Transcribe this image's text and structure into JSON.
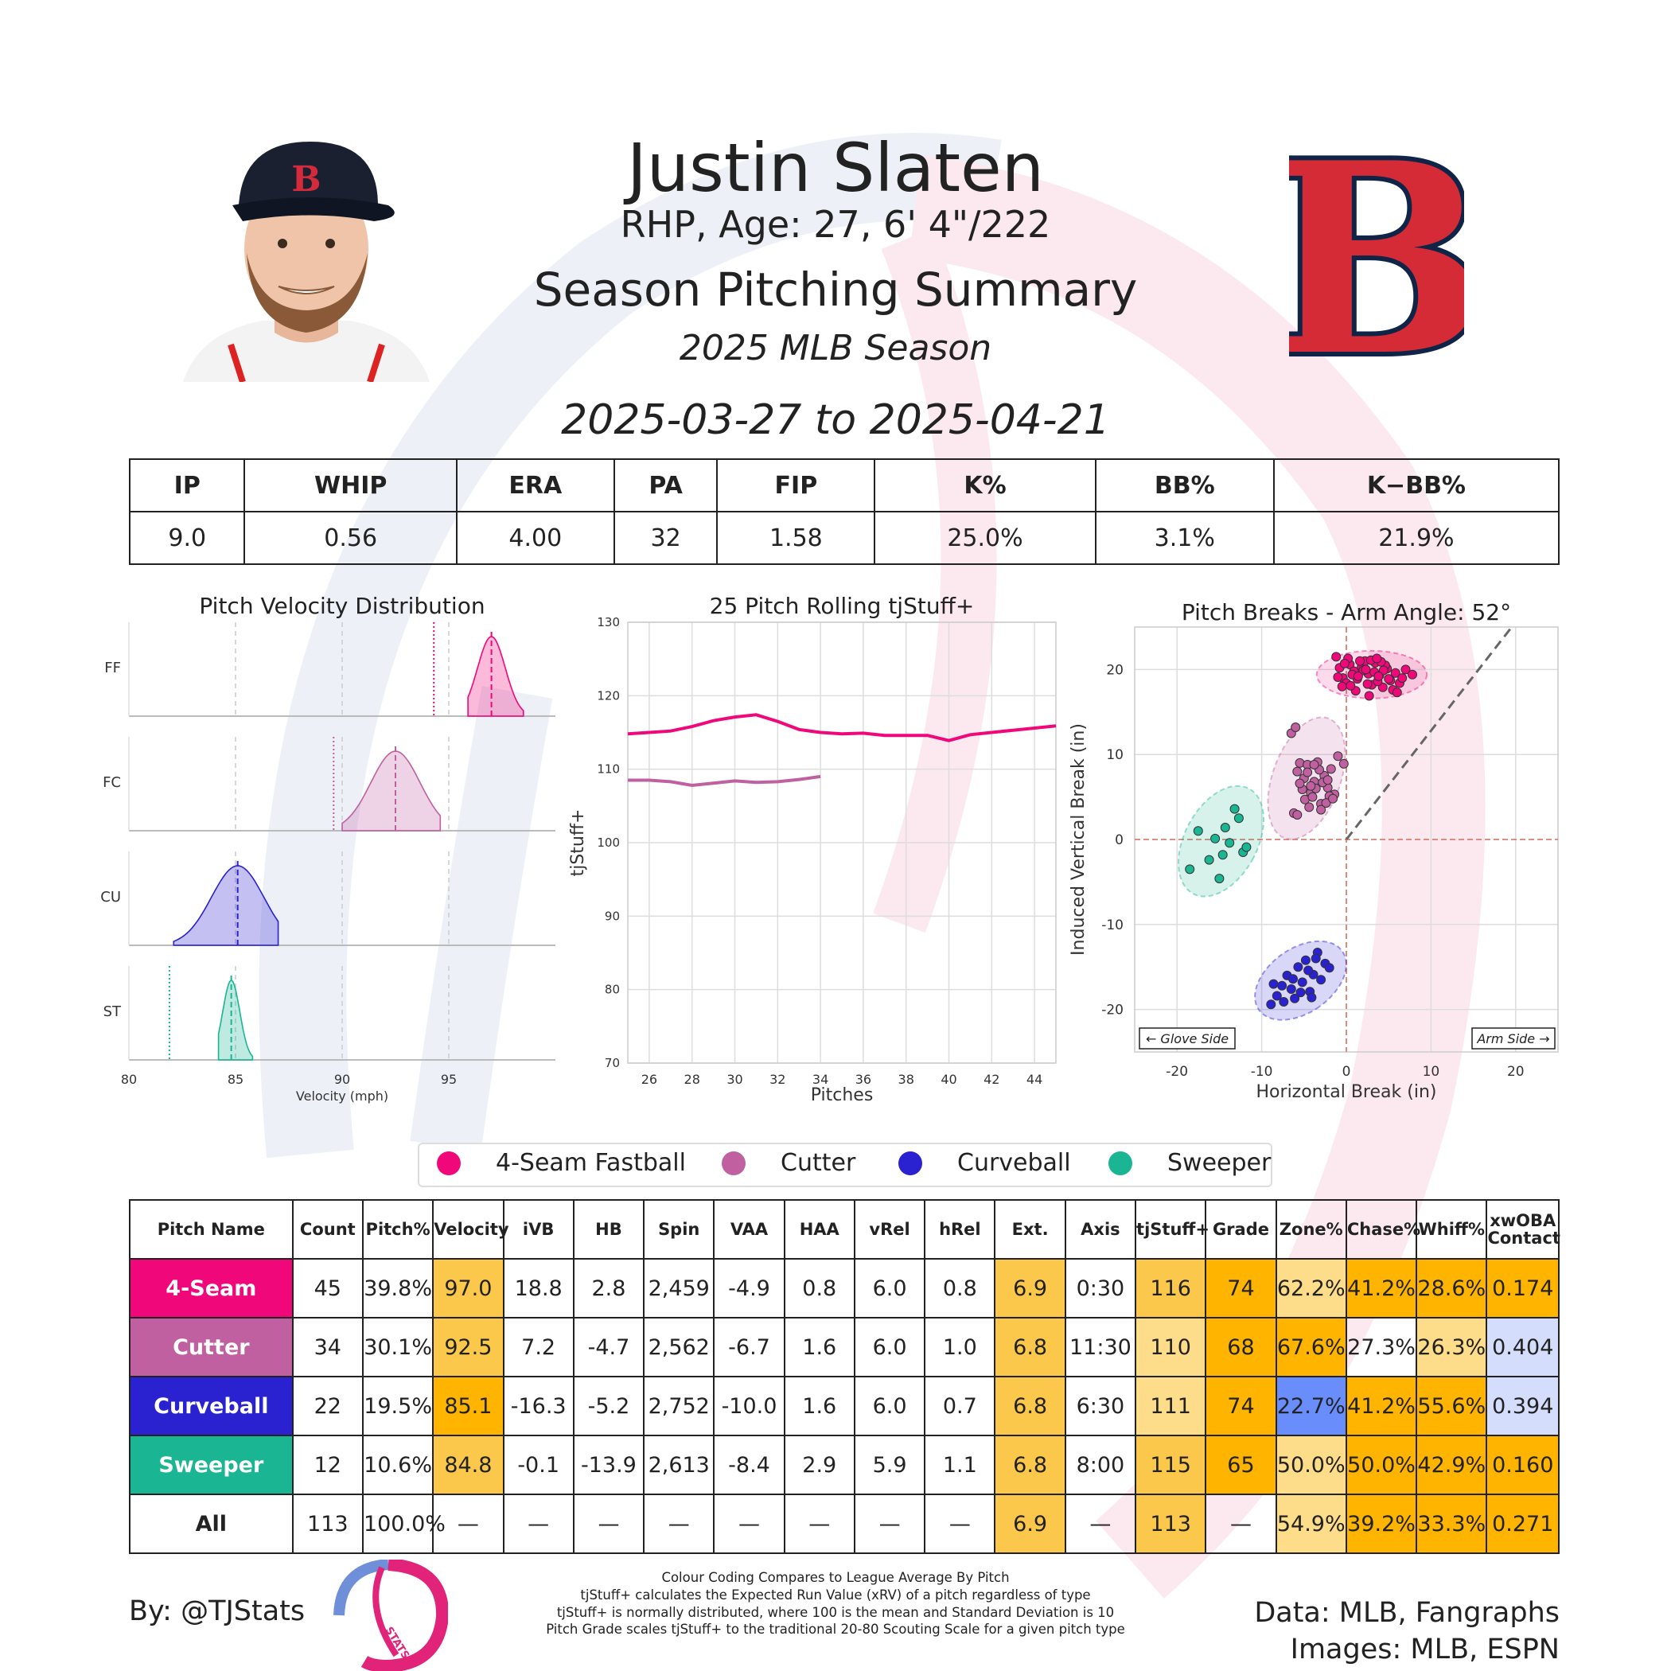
{
  "header": {
    "name": "Justin Slaten",
    "bio": "RHP, Age: 27, 6' 4\"/222",
    "heading": "Season Pitching Summary",
    "season": "2025 MLB Season",
    "date_range": "2025-03-27 to 2025-04-21",
    "team_logo_letter": "B"
  },
  "colors": {
    "four_seam": "#f0087a",
    "cutter": "#c060a0",
    "curveball": "#2a22d0",
    "sweeper": "#1ab592",
    "cell_orange": "#ffb400",
    "cell_orange_mid": "#fcc84c",
    "cell_orange_light": "#fddc8a",
    "cell_blue": "#6a8dfc",
    "cell_blue_light": "#d4ddfb"
  },
  "summary_stats": {
    "headers": [
      "IP",
      "WHIP",
      "ERA",
      "PA",
      "FIP",
      "K%",
      "BB%",
      "K−BB%"
    ],
    "values": [
      "9.0",
      "0.56",
      "4.00",
      "32",
      "1.58",
      "25.0%",
      "3.1%",
      "21.9%"
    ]
  },
  "legend": [
    "4-Seam Fastball",
    "Cutter",
    "Curveball",
    "Sweeper"
  ],
  "pitch_table": {
    "headers": [
      "Pitch Name",
      "Count",
      "Pitch%",
      "Velocity",
      "iVB",
      "HB",
      "Spin",
      "VAA",
      "HAA",
      "vRel",
      "hRel",
      "Ext.",
      "Axis",
      "tjStuff+",
      "Grade",
      "Zone%",
      "Chase%",
      "Whiff%",
      "xwOBA Contact"
    ],
    "rows": [
      [
        "4-Seam",
        "45",
        "39.8%",
        "97.0",
        "18.8",
        "2.8",
        "2,459",
        "-4.9",
        "0.8",
        "6.0",
        "0.8",
        "6.9",
        "0:30",
        "116",
        "74",
        "62.2%",
        "41.2%",
        "28.6%",
        "0.174"
      ],
      [
        "Cutter",
        "34",
        "30.1%",
        "92.5",
        "7.2",
        "-4.7",
        "2,562",
        "-6.7",
        "1.6",
        "6.0",
        "1.0",
        "6.8",
        "11:30",
        "110",
        "68",
        "67.6%",
        "27.3%",
        "26.3%",
        "0.404"
      ],
      [
        "Curveball",
        "22",
        "19.5%",
        "85.1",
        "-16.3",
        "-5.2",
        "2,752",
        "-10.0",
        "1.6",
        "6.0",
        "0.7",
        "6.8",
        "6:30",
        "111",
        "74",
        "22.7%",
        "41.2%",
        "55.6%",
        "0.394"
      ],
      [
        "Sweeper",
        "12",
        "10.6%",
        "84.8",
        "-0.1",
        "-13.9",
        "2,613",
        "-8.4",
        "2.9",
        "5.9",
        "1.1",
        "6.8",
        "8:00",
        "115",
        "65",
        "50.0%",
        "50.0%",
        "42.9%",
        "0.160"
      ],
      [
        "All",
        "113",
        "100.0%",
        "—",
        "—",
        "—",
        "—",
        "—",
        "—",
        "—",
        "—",
        "6.9",
        "—",
        "113",
        "—",
        "54.9%",
        "39.2%",
        "33.3%",
        "0.271"
      ]
    ]
  },
  "footer": {
    "byline": "By: @TJStats",
    "logo_text": "STATS",
    "notes": [
      "Colour Coding Compares to League Average By Pitch",
      "tjStuff+ calculates the Expected Run Value (xRV) of a pitch regardless of type",
      "tjStuff+ is normally distributed, where 100 is the mean and Standard Deviation is 10",
      "Pitch Grade scales tjStuff+ to the traditional 20-80 Scouting Scale for a given pitch type"
    ],
    "data_credit": "Data: MLB, Fangraphs",
    "image_credit": "Images: MLB, ESPN"
  },
  "chart_data": [
    {
      "type": "area",
      "title": "Pitch Velocity Distribution",
      "xlabel": "Velocity (mph)",
      "xlim": [
        80,
        100
      ],
      "xticks": [
        "80",
        "85",
        "90",
        "95"
      ],
      "series": [
        {
          "name": "FF",
          "min": 95.9,
          "max": 98.5,
          "mean": 97.0,
          "league_avg": 94.3
        },
        {
          "name": "FC",
          "min": 90.0,
          "max": 94.6,
          "mean": 92.5,
          "league_avg": 89.6
        },
        {
          "name": "CU",
          "min": 82.1,
          "max": 87.0,
          "mean": 85.1
        },
        {
          "name": "ST",
          "min": 84.2,
          "max": 85.8,
          "mean": 84.8,
          "league_avg": 81.9
        }
      ]
    },
    {
      "type": "line",
      "title": "25 Pitch Rolling tjStuff+",
      "xlabel": "Pitches",
      "ylabel": "tjStuff+",
      "xlim": [
        25,
        45
      ],
      "ylim": [
        70,
        130
      ],
      "xticks": [
        "26",
        "28",
        "30",
        "32",
        "34",
        "36",
        "38",
        "40",
        "42",
        "44"
      ],
      "yticks": [
        "70",
        "80",
        "90",
        "100",
        "110",
        "120",
        "130"
      ],
      "series": [
        {
          "name": "4-Seam Fastball",
          "x": [
            25,
            26,
            27,
            28,
            29,
            30,
            31,
            32,
            33,
            34,
            35,
            36,
            37,
            38,
            39,
            40,
            41,
            42,
            43,
            44,
            45
          ],
          "values": [
            114.8,
            115.0,
            115.2,
            115.8,
            116.6,
            117.1,
            117.4,
            116.5,
            115.4,
            115.0,
            114.8,
            114.9,
            114.6,
            114.6,
            114.6,
            113.9,
            114.7,
            115.0,
            115.3,
            115.6,
            115.9
          ]
        },
        {
          "name": "Cutter",
          "x": [
            25,
            26,
            27,
            28,
            29,
            30,
            31,
            32,
            33,
            34
          ],
          "values": [
            108.5,
            108.5,
            108.3,
            107.8,
            108.1,
            108.4,
            108.2,
            108.3,
            108.6,
            109.0
          ]
        }
      ]
    },
    {
      "type": "scatter",
      "title": "Pitch Breaks - Arm Angle: 52°",
      "xlabel": "Horizontal Break (in)",
      "ylabel": "Induced Vertical Break (in)",
      "xlim": [
        -25,
        25
      ],
      "ylim": [
        -25,
        25
      ],
      "xticks": [
        "-20",
        "-10",
        "0",
        "10",
        "20"
      ],
      "yticks": [
        "-20",
        "-10",
        "0",
        "10",
        "20"
      ],
      "arm_angle_deg": 52,
      "annotations": [
        "← Glove Side",
        "Arm Side →"
      ],
      "series": [
        {
          "name": "4-Seam Fastball",
          "x": [
            -1.2,
            -0.8,
            -0.4,
            0,
            0.4,
            0.9,
            1.3,
            1.8,
            2.2,
            2.6,
            3.0,
            3.4,
            3.9,
            4.3,
            4.8,
            5.2,
            5.8,
            6.3,
            7.0,
            7.8,
            -1.0,
            0.2,
            1.1,
            2.0,
            2.9,
            3.7,
            4.6,
            5.5,
            6.6,
            -0.5,
            0.7,
            1.6,
            2.5,
            3.3,
            4.1,
            5.0,
            6.0,
            -0.2,
            1.4,
            2.7,
            3.6,
            4.4,
            0.5,
            2.3,
            3.8
          ],
          "y": [
            21.5,
            20.2,
            19.0,
            18.4,
            20.6,
            19.8,
            18.9,
            20.3,
            21.0,
            19.5,
            18.2,
            20.8,
            19.3,
            17.9,
            20.1,
            18.7,
            19.6,
            18.4,
            20.0,
            19.4,
            19.1,
            21.3,
            17.5,
            19.9,
            21.1,
            18.6,
            20.5,
            17.6,
            19.0,
            18.0,
            19.4,
            21.0,
            18.3,
            19.7,
            20.9,
            18.9,
            17.3,
            20.7,
            19.2,
            16.9,
            21.3,
            19.9,
            18.1,
            20.0,
            19.2
          ]
        },
        {
          "name": "Cutter",
          "x": [
            -6.5,
            -6.0,
            -5.5,
            -5.0,
            -4.6,
            -4.2,
            -3.8,
            -3.4,
            -3.0,
            -2.6,
            -2.2,
            -1.8,
            -1.4,
            -1.0,
            -0.3,
            -6.2,
            -5.2,
            -4.4,
            -3.6,
            -2.8,
            -2.0,
            -5.8,
            -4.9,
            -4.0,
            -3.2,
            -2.4,
            -5.5,
            -4.6,
            -3.8,
            -3.0,
            -2.2,
            -1.6,
            -4.2,
            -5.8
          ],
          "y": [
            12.5,
            13.2,
            9.0,
            7.2,
            8.8,
            5.5,
            6.8,
            9.1,
            4.2,
            7.5,
            6.1,
            8.3,
            5.3,
            9.8,
            8.9,
            3.1,
            5.9,
            3.8,
            6.0,
            6.7,
            5.1,
            2.9,
            4.7,
            5.0,
            8.2,
            4.3,
            6.6,
            7.9,
            8.8,
            3.5,
            7.0,
            4.8,
            6.3,
            8.0
          ],
          "ellipse": {
            "cx": -4.7,
            "cy": 7.2,
            "rx": 4.0,
            "ry": 7.5,
            "rot": 20
          }
        },
        {
          "name": "Curveball",
          "x": [
            -8.9,
            -8.2,
            -7.6,
            -7.0,
            -6.5,
            -6.1,
            -5.7,
            -5.2,
            -4.8,
            -4.3,
            -3.9,
            -3.4,
            -3.0,
            -2.5,
            -2.0,
            -7.4,
            -6.3,
            -5.4,
            -4.5,
            -3.6,
            -8.6,
            -4.1
          ],
          "y": [
            -19.4,
            -18.4,
            -17.2,
            -16.0,
            -17.6,
            -18.7,
            -15.0,
            -16.8,
            -14.2,
            -17.9,
            -15.9,
            -13.3,
            -16.5,
            -14.6,
            -15.1,
            -19.1,
            -16.4,
            -18.0,
            -15.4,
            -14.0,
            -17.0,
            -18.6
          ],
          "ellipse": {
            "cx": -5.4,
            "cy": -16.6,
            "rx": 3.8,
            "ry": 6.0,
            "rot": 55
          }
        },
        {
          "name": "Sweeper",
          "x": [
            -18.5,
            -17.5,
            -16.2,
            -15.5,
            -15.0,
            -14.3,
            -13.8,
            -13.2,
            -12.7,
            -12.2,
            -11.8,
            -14.6
          ],
          "y": [
            -3.5,
            1.0,
            -2.4,
            0.1,
            -4.6,
            1.4,
            -0.4,
            3.6,
            2.5,
            -1.5,
            -0.9,
            -1.8
          ],
          "ellipse": {
            "cx": -14.8,
            "cy": -0.2,
            "rx": 4.3,
            "ry": 7.0,
            "rot": 28
          }
        }
      ]
    }
  ]
}
